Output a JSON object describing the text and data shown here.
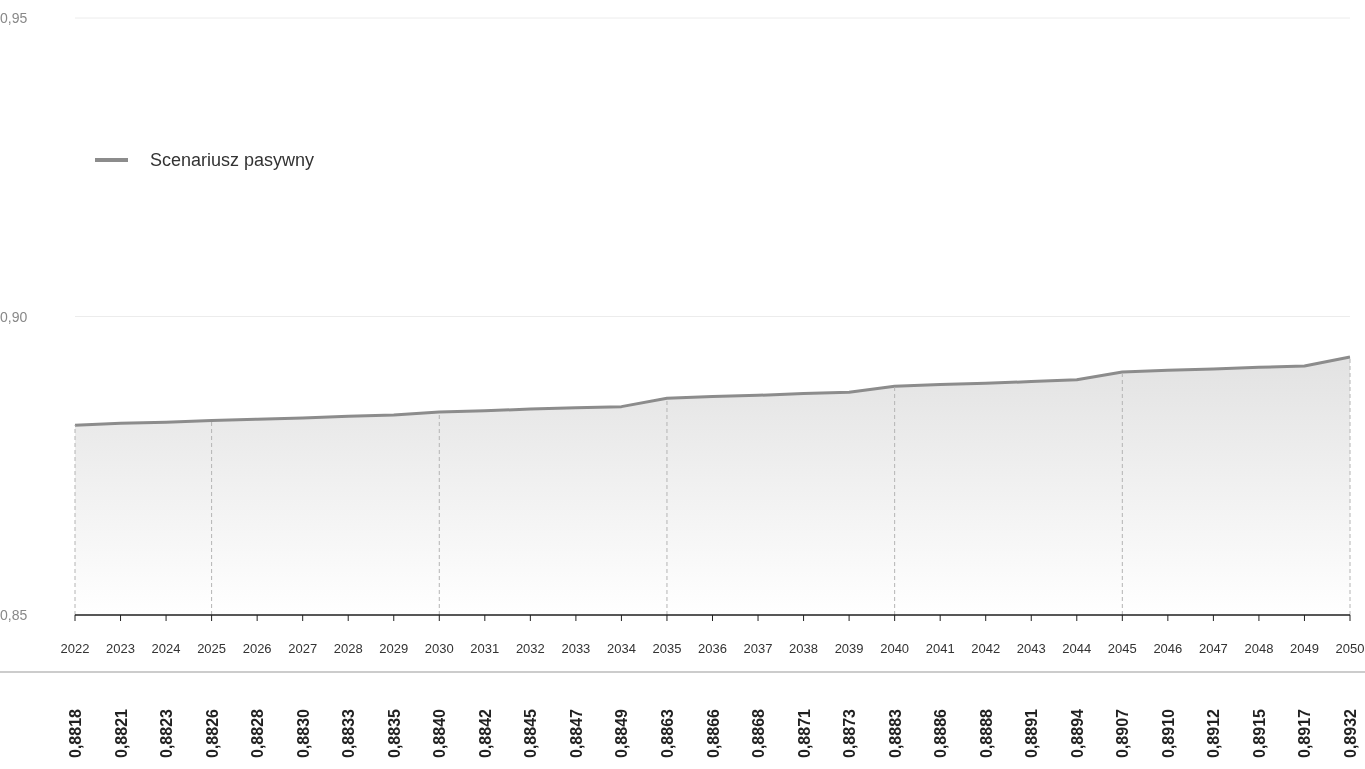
{
  "chart_data": {
    "type": "area",
    "categories": [
      "2022",
      "2023",
      "2024",
      "2025",
      "2026",
      "2027",
      "2028",
      "2029",
      "2030",
      "2031",
      "2032",
      "2033",
      "2034",
      "2035",
      "2036",
      "2037",
      "2038",
      "2039",
      "2040",
      "2041",
      "2042",
      "2043",
      "2044",
      "2045",
      "2046",
      "2047",
      "2048",
      "2049",
      "2050"
    ],
    "series": [
      {
        "name": "Scenariusz pasywny",
        "color": "#8c8c8c",
        "values": [
          0.8818,
          0.8821,
          0.8823,
          0.8826,
          0.8828,
          0.883,
          0.8833,
          0.8835,
          0.884,
          0.8842,
          0.8845,
          0.8847,
          0.8849,
          0.8863,
          0.8866,
          0.8868,
          0.8871,
          0.8873,
          0.8883,
          0.8886,
          0.8888,
          0.8891,
          0.8894,
          0.8907,
          0.891,
          0.8912,
          0.8915,
          0.8917,
          0.8932
        ],
        "value_labels": [
          "0,8818",
          "0,8821",
          "0,8823",
          "0,8826",
          "0,8828",
          "0,8830",
          "0,8833",
          "0,8835",
          "0,8840",
          "0,8842",
          "0,8845",
          "0,8847",
          "0,8849",
          "0,8863",
          "0,8866",
          "0,8868",
          "0,8871",
          "0,8873",
          "0,8883",
          "0,8886",
          "0,8888",
          "0,8891",
          "0,8894",
          "0,8907",
          "0,8910",
          "0,8912",
          "0,8915",
          "0,8917",
          "0,8932"
        ]
      }
    ],
    "ylim": [
      0.85,
      0.95
    ],
    "yticks": [
      {
        "value": 0.85,
        "label": "0,85"
      },
      {
        "value": 0.9,
        "label": "0,90"
      },
      {
        "value": 0.95,
        "label": "0,95"
      }
    ],
    "grid": "y",
    "legend": "top left",
    "marker": "none",
    "line_style": "solid",
    "ref_lines": [
      {
        "axis": "x",
        "value": "2022",
        "line_style": "dashed",
        "color": "#b4b4b4"
      },
      {
        "axis": "x",
        "value": "2025",
        "line_style": "dashed",
        "color": "#b4b4b4"
      },
      {
        "axis": "x",
        "value": "2030",
        "line_style": "dashed",
        "color": "#b4b4b4"
      },
      {
        "axis": "x",
        "value": "2035",
        "line_style": "dashed",
        "color": "#b4b4b4"
      },
      {
        "axis": "x",
        "value": "2040",
        "line_style": "dashed",
        "color": "#b4b4b4"
      },
      {
        "axis": "x",
        "value": "2045",
        "line_style": "dashed",
        "color": "#b4b4b4"
      },
      {
        "axis": "x",
        "value": "2050",
        "line_style": "dashed",
        "color": "#b4b4b4"
      }
    ]
  }
}
